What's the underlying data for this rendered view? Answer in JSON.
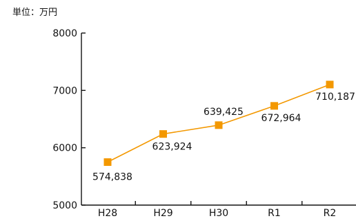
{
  "unit_label": "単位：万円",
  "colors": {
    "series": "#f39800",
    "axis": "#111111",
    "text": "#111111",
    "background": "#ffffff"
  },
  "chart_data": {
    "type": "line",
    "title": "",
    "xlabel": "",
    "ylabel": "単位：万円",
    "categories": [
      "H28",
      "H29",
      "H30",
      "R1",
      "R2"
    ],
    "series": [
      {
        "values": [
          5750,
          6240,
          6394,
          6730,
          7102
        ],
        "data_labels": [
          "574,838",
          "623,924",
          "639,425",
          "672,964",
          "710,187"
        ]
      }
    ],
    "ylim": [
      5000,
      8000
    ],
    "yticks": [
      5000,
      6000,
      7000,
      8000
    ],
    "ytick_labels": [
      "5000",
      "6000",
      "7000",
      "8000"
    ],
    "grid": false,
    "legend": "none",
    "marker": "square"
  }
}
